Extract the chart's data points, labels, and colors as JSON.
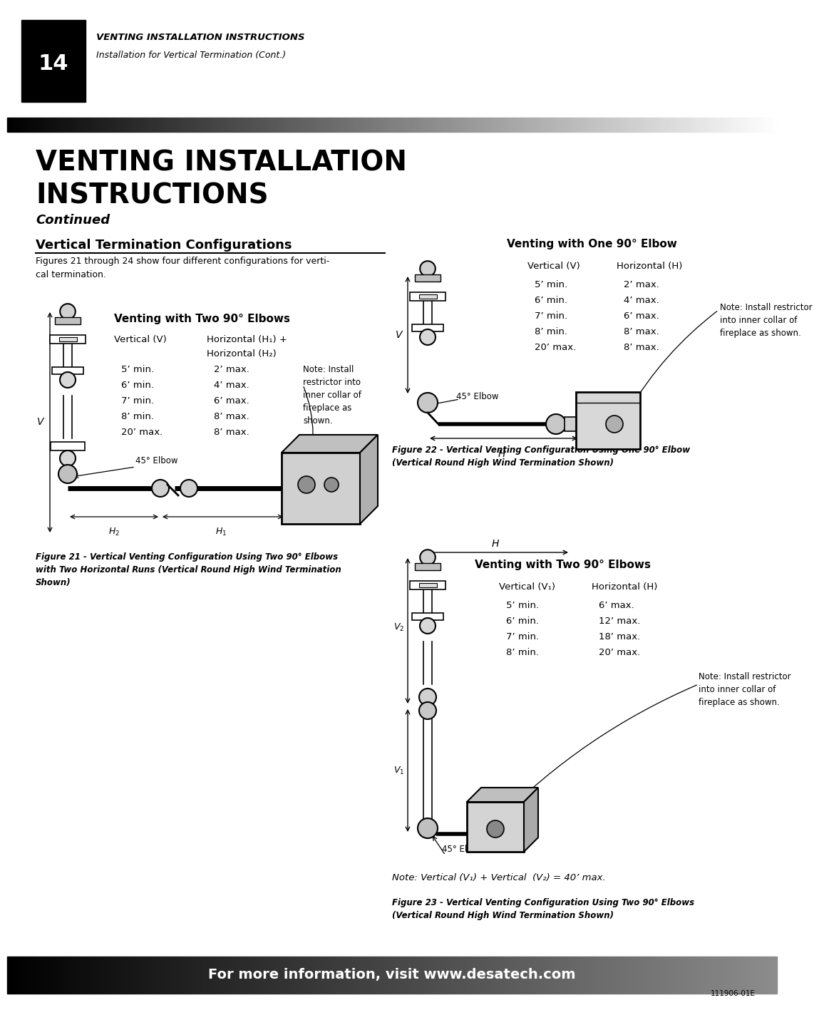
{
  "page_width": 10.8,
  "page_height": 13.97,
  "bg_color": "#ffffff",
  "header_number": "14",
  "header_title": "VENTING INSTALLATION INSTRUCTIONS",
  "header_subtitle": "Installation for Vertical Termination (Cont.)",
  "main_title_line1": "VENTING INSTALLATION",
  "main_title_line2": "INSTRUCTIONS",
  "main_subtitle": "Continued",
  "section_heading": "Vertical Termination Configurations",
  "section_body": "Figures 21 through 24 show four different configurations for verti-\ncal termination.",
  "fig21_title": "Venting with Two 90° Elbows",
  "fig21_col1_header": "Vertical (V)",
  "fig21_col2_header": "Horizontal (H₁) +",
  "fig21_col2_header2": "Horizontal (H₂)",
  "fig21_col1": [
    "5’ min.",
    "6’ min.",
    "7’ min.",
    "8’ min.",
    "20’ max."
  ],
  "fig21_col2": [
    "2’ max.",
    "4’ max.",
    "6’ max.",
    "8’ max.",
    "8’ max."
  ],
  "fig21_note": "Note: Install\nrestrictor into\ninner collar of\nfireplace as\nshown.",
  "fig21_45elbow": "45° Elbow",
  "fig21_caption": "Figure 21 - Vertical Venting Configuration Using Two 90° Elbows\nwith Two Horizontal Runs (Vertical Round High Wind Termination\nShown)",
  "fig22_title": "Venting with One 90° Elbow",
  "fig22_col1_header": "Vertical (V)",
  "fig22_col2_header": "Horizontal (H)",
  "fig22_col1": [
    "5’ min.",
    "6’ min.",
    "7’ min.",
    "8’ min.",
    "20’ max."
  ],
  "fig22_col2": [
    "2’ max.",
    "4’ max.",
    "6’ max.",
    "8’ max.",
    "8’ max."
  ],
  "fig22_note": "Note: Install restrictor\ninto inner collar of\nfireplace as shown.",
  "fig22_45elbow": "45° Elbow",
  "fig22_caption": "Figure 22 - Vertical Venting Configuration Using One 90° Elbow\n(Vertical Round High Wind Termination Shown)",
  "fig23_title": "Venting with Two 90° Elbows",
  "fig23_col1_header": "Vertical (V₁)",
  "fig23_col2_header": "Horizontal (H)",
  "fig23_col1": [
    "5’ min.",
    "6’ min.",
    "7’ min.",
    "8’ min."
  ],
  "fig23_col2": [
    "6’ max.",
    "12’ max.",
    "18’ max.",
    "20’ max."
  ],
  "fig23_note": "Note: Install restrictor\ninto inner collar of\nfireplace as shown.",
  "fig23_45elbow": "45° Elbow",
  "fig23_footnote": "Note: Vertical (V₁) + Vertical  (V₂) = 40’ max.",
  "fig23_caption": "Figure 23 - Vertical Venting Configuration Using Two 90° Elbows\n(Vertical Round High Wind Termination Shown)",
  "footer_text": "For more information, visit www.desatech.com",
  "footer_code": "111906-01E"
}
